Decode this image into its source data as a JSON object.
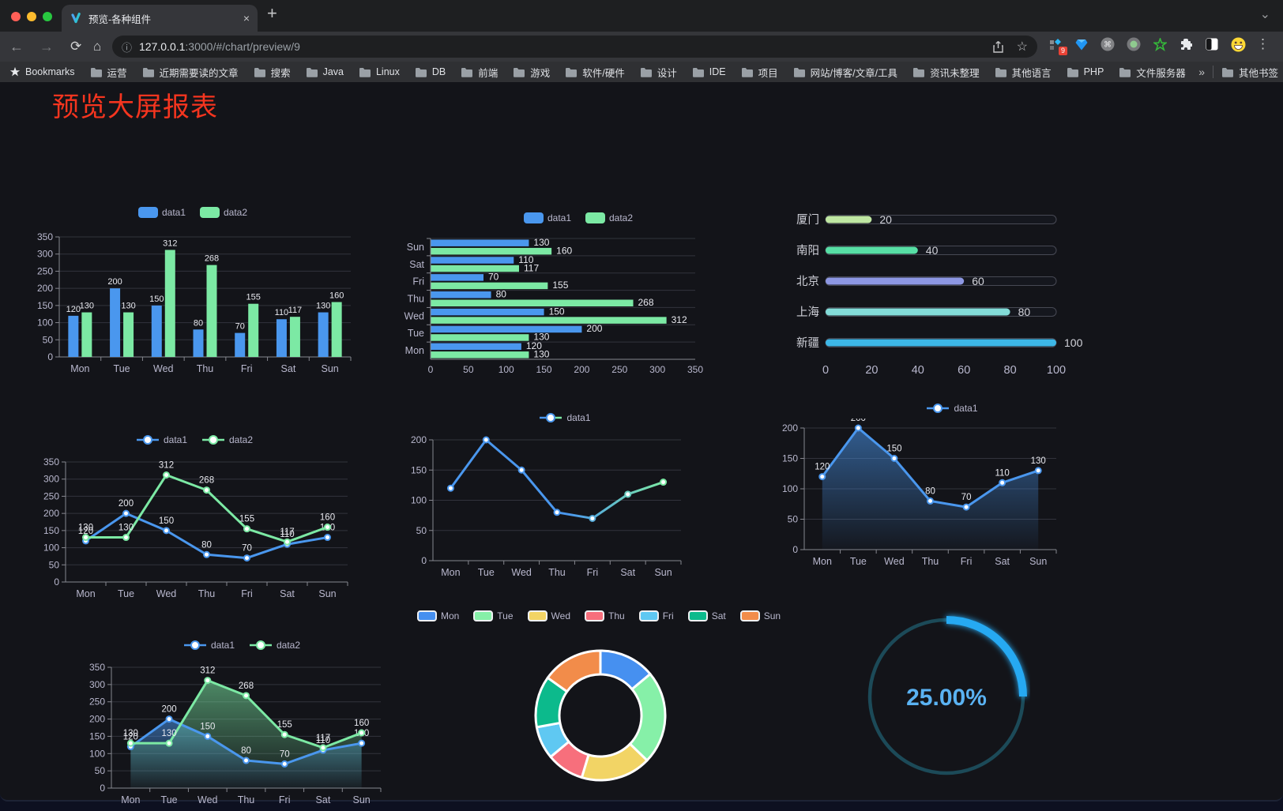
{
  "browser": {
    "tab": {
      "title": "预览-各种组件",
      "close": "×",
      "new_tab": "+"
    },
    "url": {
      "host": "127.0.0.1",
      "rest": ":3000/#/chart/preview/9"
    },
    "extensions_badge": "9",
    "bookmarks": {
      "star_label": "Bookmarks",
      "folders": [
        "运营",
        "近期需要读的文章",
        "搜索",
        "Java",
        "Linux",
        "DB",
        "前端",
        "游戏",
        "软件/硬件",
        "设计",
        "IDE",
        "项目",
        "网站/博客/文章/工具",
        "资讯未整理",
        "其他语言",
        "PHP",
        "文件服务器"
      ],
      "overflow": "»",
      "other": "其他书签"
    }
  },
  "icons": {
    "back": "←",
    "forward": "→",
    "reload": "⟳",
    "home": "⌂",
    "info": "ⓘ",
    "star_outline": "☆",
    "dots": "⋮",
    "chevron_down": "⌄"
  },
  "page": {
    "title": "预览大屏报表",
    "title_color": "#f5351f"
  },
  "palette": {
    "blue": "#4a97ee",
    "green": "#7ce9a4",
    "text": "#b9b8ce",
    "label": "#e8e9ef"
  },
  "chart_data": [
    {
      "id": "grouped-bar",
      "type": "bar",
      "categories": [
        "Mon",
        "Tue",
        "Wed",
        "Thu",
        "Fri",
        "Sat",
        "Sun"
      ],
      "series": [
        {
          "name": "data1",
          "color": "#4a97ee",
          "values": [
            120,
            200,
            150,
            80,
            70,
            110,
            130
          ]
        },
        {
          "name": "data2",
          "color": "#7ce9a4",
          "values": [
            130,
            130,
            312,
            268,
            155,
            117,
            160
          ]
        }
      ],
      "ylim": [
        0,
        350
      ],
      "ystep": 50,
      "legend_marker": "rect",
      "legend_position": "top",
      "grid": true
    },
    {
      "id": "grouped-horizontal-bar",
      "type": "hbar",
      "categories": [
        "Mon",
        "Tue",
        "Wed",
        "Thu",
        "Fri",
        "Sat",
        "Sun"
      ],
      "series": [
        {
          "name": "data1",
          "color": "#4a97ee",
          "values": [
            120,
            200,
            150,
            80,
            70,
            110,
            130
          ]
        },
        {
          "name": "data2",
          "color": "#7ce9a4",
          "values": [
            130,
            130,
            312,
            268,
            155,
            117,
            160
          ]
        }
      ],
      "xlim": [
        0,
        350
      ],
      "xstep": 50,
      "legend_marker": "rect",
      "legend_position": "top",
      "category_order_display": "Sun-at-top"
    },
    {
      "id": "city-progress",
      "type": "progress",
      "items": [
        {
          "label": "厦门",
          "value": 20,
          "color": "#bfe7a2"
        },
        {
          "label": "南阳",
          "value": 40,
          "color": "#57dfa5"
        },
        {
          "label": "北京",
          "value": 60,
          "color": "#8d97e3"
        },
        {
          "label": "上海",
          "value": 80,
          "color": "#83dcd8"
        },
        {
          "label": "新疆",
          "value": 100,
          "color": "#3db7e7"
        }
      ],
      "xlim": [
        0,
        100
      ],
      "xstep": 20
    },
    {
      "id": "two-series-line",
      "type": "line",
      "categories": [
        "Mon",
        "Tue",
        "Wed",
        "Thu",
        "Fri",
        "Sat",
        "Sun"
      ],
      "series": [
        {
          "name": "data1",
          "color": "#4a97ee",
          "values": [
            120,
            200,
            150,
            80,
            70,
            110,
            130
          ]
        },
        {
          "name": "data2",
          "color": "#7ce9a4",
          "values": [
            130,
            130,
            312,
            268,
            155,
            117,
            160
          ]
        }
      ],
      "ylim": [
        0,
        350
      ],
      "ystep": 50,
      "labels": true,
      "legend_marker": "line",
      "legend_position": "top"
    },
    {
      "id": "gradient-line",
      "type": "line",
      "categories": [
        "Mon",
        "Tue",
        "Wed",
        "Thu",
        "Fri",
        "Sat",
        "Sun"
      ],
      "series": [
        {
          "name": "data1",
          "color": "#4a97ee",
          "gradient_to": "#7ce9a4",
          "values": [
            120,
            200,
            150,
            80,
            70,
            110,
            130
          ]
        }
      ],
      "ylim": [
        0,
        200
      ],
      "ystep": 50,
      "labels": false,
      "legend_marker": "line",
      "legend_position": "top"
    },
    {
      "id": "area-line",
      "type": "line",
      "categories": [
        "Mon",
        "Tue",
        "Wed",
        "Thu",
        "Fri",
        "Sat",
        "Sun"
      ],
      "series": [
        {
          "name": "data1",
          "color": "#4a97ee",
          "area": true,
          "values": [
            120,
            200,
            150,
            80,
            70,
            110,
            130
          ]
        }
      ],
      "ylim": [
        0,
        200
      ],
      "ystep": 50,
      "labels": true,
      "legend_marker": "line",
      "legend_position": "top"
    },
    {
      "id": "two-series-area",
      "type": "line",
      "categories": [
        "Mon",
        "Tue",
        "Wed",
        "Thu",
        "Fri",
        "Sat",
        "Sun"
      ],
      "series": [
        {
          "name": "data1",
          "color": "#4a97ee",
          "area": true,
          "values": [
            120,
            200,
            150,
            80,
            70,
            110,
            130
          ]
        },
        {
          "name": "data2",
          "color": "#7ce9a4",
          "area": true,
          "values": [
            130,
            130,
            312,
            268,
            155,
            117,
            160
          ]
        }
      ],
      "ylim": [
        0,
        350
      ],
      "ystep": 50,
      "labels": true,
      "legend_marker": "line",
      "legend_position": "top"
    },
    {
      "id": "donut",
      "type": "pie",
      "categories": [
        "Mon",
        "Tue",
        "Wed",
        "Thu",
        "Fri",
        "Sat",
        "Sun"
      ],
      "values": [
        120,
        200,
        150,
        80,
        70,
        110,
        130
      ],
      "colors": [
        "#4690f0",
        "#86f0a8",
        "#f2d465",
        "#f76f7c",
        "#5fc8f2",
        "#0cba8c",
        "#f28c4a"
      ],
      "inner_radius_ratio": 0.63,
      "border_color": "#ffffff",
      "legend_position": "top"
    },
    {
      "id": "gauge",
      "type": "gauge",
      "value": 25,
      "max": 100,
      "label": "25.00%",
      "track_color": "#1c4a58",
      "progress_color": "#28a9f2",
      "text_color": "#5ab2f2"
    }
  ]
}
